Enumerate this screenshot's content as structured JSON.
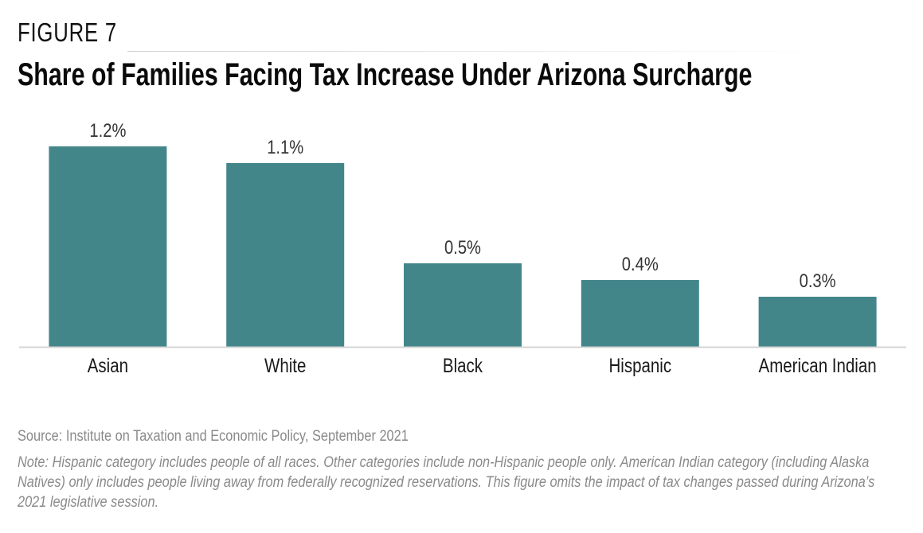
{
  "figure_label": "FIGURE 7",
  "title": "Share of Families Facing Tax Increase Under Arizona Surcharge",
  "source": "Source: Institute on Taxation and Economic Policy, September 2021",
  "note": "Note: Hispanic category includes people of all races. Other categories include non-Hispanic people only. American Indian category (including Alaska Natives) only includes people living away from federally recognized reservations. This figure omits the impact of tax changes passed during Arizona’s 2021 legislative session.",
  "colors": {
    "bar": "#43868a",
    "baseline": "#d4d4d4"
  },
  "chart_data": {
    "type": "bar",
    "categories": [
      "Asian",
      "White",
      "Black",
      "Hispanic",
      "American Indian"
    ],
    "values": [
      1.2,
      1.1,
      0.5,
      0.4,
      0.3
    ],
    "data_labels": [
      "1.2%",
      "1.1%",
      "0.5%",
      "0.4%",
      "0.3%"
    ],
    "title": "Share of Families Facing Tax Increase Under Arizona Surcharge",
    "xlabel": "",
    "ylabel": "",
    "ylim": [
      0,
      1.2
    ],
    "grid": false,
    "legend": "none"
  }
}
